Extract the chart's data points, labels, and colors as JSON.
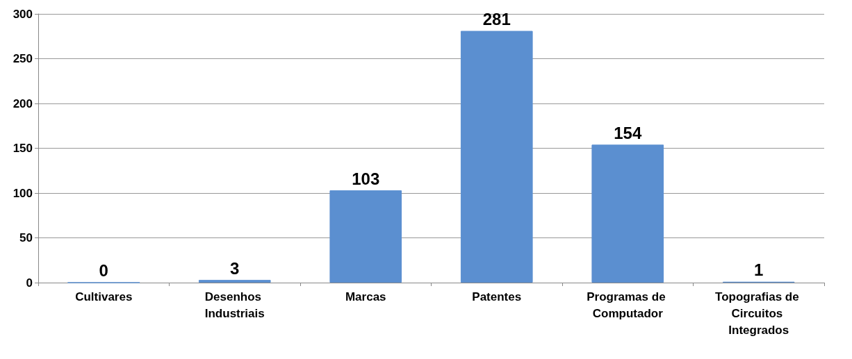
{
  "chart_data": {
    "type": "bar",
    "categories": [
      "Cultivares",
      "Desenhos Industriais",
      "Marcas",
      "Patentes",
      "Programas de Computador",
      "Topografias de Circuitos Integrados"
    ],
    "values": [
      0,
      3,
      103,
      281,
      154,
      1
    ],
    "color": "#5b8fd0",
    "ylim": [
      0,
      300
    ],
    "yticks": [
      0,
      50,
      100,
      150,
      200,
      250,
      300
    ],
    "grid": "y",
    "data_labels": true
  }
}
